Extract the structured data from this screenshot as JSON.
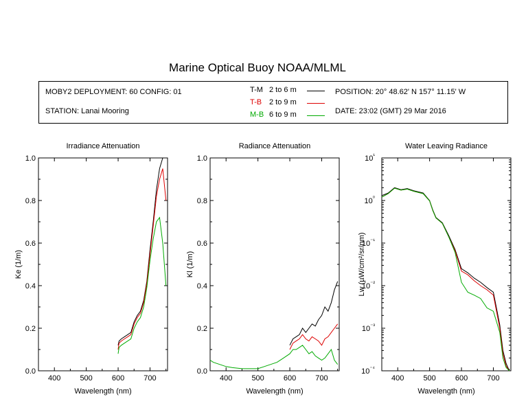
{
  "title": "Marine Optical Buoy NOAA/MLML",
  "info": {
    "deployment": "MOBY2 DEPLOYMENT: 60 CONFIG: 01",
    "station": "STATION: Lanai Mooring",
    "position": "POSITION: 20° 48.62' N   157° 11.15' W",
    "date": "DATE: 23:02 (GMT) 29 Mar 2016",
    "legend": [
      {
        "key": "T-M",
        "range": "2 to 6",
        "unit": "m",
        "color": "#000000",
        "key_color": "#000000"
      },
      {
        "key": "T-B",
        "range": "2 to 9",
        "unit": "m",
        "color": "#dd0000",
        "key_color": "#dd0000"
      },
      {
        "key": "M-B",
        "range": "6 to 9",
        "unit": "m",
        "color": "#00aa00",
        "key_color": "#00aa00"
      }
    ]
  },
  "chart_data": [
    {
      "type": "line",
      "title": "Irradiance Attenuation",
      "xlabel": "Wavelength (nm)",
      "ylabel": "Ke  (1/m)",
      "xlim": [
        350,
        755
      ],
      "ylim": [
        0,
        1.0
      ],
      "xticks": [
        400,
        500,
        600,
        700
      ],
      "yticks": [
        0.0,
        0.2,
        0.4,
        0.6,
        0.8,
        1.0
      ],
      "ytick_labels": [
        "0.0",
        "0.2",
        "0.4",
        "0.6",
        "0.8",
        "1.0"
      ],
      "series": [
        {
          "name": "T-M",
          "x": [
            600,
            603,
            610,
            620,
            630,
            640,
            650,
            660,
            665,
            670,
            680,
            690,
            700,
            710,
            720,
            730,
            740,
            750
          ],
          "y": [
            0.12,
            0.14,
            0.15,
            0.16,
            0.17,
            0.18,
            0.23,
            0.26,
            0.27,
            0.28,
            0.33,
            0.42,
            0.57,
            0.7,
            0.85,
            0.95,
            1.0,
            1.0
          ]
        },
        {
          "name": "T-B",
          "x": [
            600,
            603,
            610,
            620,
            630,
            640,
            650,
            660,
            665,
            670,
            680,
            690,
            700,
            710,
            720,
            730,
            740,
            750
          ],
          "y": [
            0.1,
            0.13,
            0.14,
            0.15,
            0.16,
            0.17,
            0.22,
            0.25,
            0.26,
            0.27,
            0.32,
            0.41,
            0.55,
            0.68,
            0.82,
            0.9,
            0.95,
            0.8
          ]
        },
        {
          "name": "M-B",
          "x": [
            600,
            603,
            610,
            620,
            630,
            640,
            650,
            660,
            665,
            670,
            680,
            690,
            700,
            710,
            720,
            730,
            740,
            750
          ],
          "y": [
            0.08,
            0.11,
            0.12,
            0.13,
            0.14,
            0.15,
            0.2,
            0.23,
            0.24,
            0.25,
            0.3,
            0.39,
            0.52,
            0.62,
            0.7,
            0.72,
            0.6,
            0.4
          ]
        }
      ]
    },
    {
      "type": "line",
      "title": "Radiance Attenuation",
      "xlabel": "Wavelength (nm)",
      "ylabel": "Kl  (1/m)",
      "xlim": [
        350,
        755
      ],
      "ylim": [
        0,
        1.0
      ],
      "xticks": [
        400,
        500,
        600,
        700
      ],
      "yticks": [
        0.0,
        0.2,
        0.4,
        0.6,
        0.8,
        1.0
      ],
      "ytick_labels": [
        "0.0",
        "0.2",
        "0.4",
        "0.6",
        "0.8",
        "1.0"
      ],
      "series": [
        {
          "name": "T-M",
          "x": [
            600,
            610,
            620,
            630,
            640,
            650,
            660,
            670,
            680,
            690,
            700,
            710,
            720,
            730,
            740,
            750
          ],
          "y": [
            0.12,
            0.15,
            0.16,
            0.17,
            0.2,
            0.18,
            0.2,
            0.22,
            0.21,
            0.24,
            0.26,
            0.3,
            0.28,
            0.32,
            0.38,
            0.42
          ]
        },
        {
          "name": "T-B",
          "x": [
            600,
            610,
            620,
            630,
            640,
            650,
            660,
            670,
            680,
            690,
            700,
            710,
            720,
            730,
            740,
            750
          ],
          "y": [
            0.1,
            0.13,
            0.14,
            0.15,
            0.17,
            0.15,
            0.14,
            0.16,
            0.15,
            0.14,
            0.12,
            0.15,
            0.16,
            0.18,
            0.2,
            0.22
          ]
        },
        {
          "name": "M-B",
          "x": [
            350,
            360,
            380,
            400,
            420,
            450,
            480,
            500,
            520,
            540,
            560,
            580,
            600,
            610,
            620,
            630,
            640,
            650,
            660,
            670,
            680,
            690,
            700,
            710,
            720,
            730,
            740,
            750
          ],
          "y": [
            0.05,
            0.04,
            0.03,
            0.02,
            0.015,
            0.01,
            0.01,
            0.01,
            0.02,
            0.03,
            0.04,
            0.06,
            0.08,
            0.1,
            0.1,
            0.11,
            0.12,
            0.1,
            0.08,
            0.09,
            0.07,
            0.06,
            0.05,
            0.06,
            0.08,
            0.1,
            0.05,
            0.03
          ]
        }
      ]
    },
    {
      "type": "line",
      "title": "Water Leaving Radiance",
      "xlabel": "Wavelength (nm)",
      "ylabel": "Lw  (µW/cm²/sr/nm)",
      "xlim": [
        350,
        755
      ],
      "yscale": "log",
      "ylim": [
        0.0001,
        10
      ],
      "xticks": [
        400,
        500,
        600,
        700
      ],
      "yticks": [
        0.0001,
        0.001,
        0.01,
        0.1,
        1,
        10
      ],
      "ytick_labels": [
        "10⁻⁴",
        "10⁻³",
        "10⁻²",
        "10⁻¹",
        "10⁰",
        "10¹"
      ],
      "series": [
        {
          "name": "T-M",
          "x": [
            350,
            370,
            390,
            410,
            430,
            450,
            480,
            500,
            510,
            520,
            540,
            560,
            580,
            600,
            620,
            640,
            660,
            680,
            700,
            720,
            730,
            740,
            750
          ],
          "y": [
            1.3,
            1.5,
            2.0,
            1.8,
            1.9,
            1.7,
            1.5,
            1.0,
            0.6,
            0.4,
            0.3,
            0.15,
            0.07,
            0.025,
            0.02,
            0.015,
            0.012,
            0.009,
            0.007,
            0.0012,
            0.0003,
            0.00015,
            0.0001
          ]
        },
        {
          "name": "T-B",
          "x": [
            350,
            370,
            390,
            410,
            430,
            450,
            480,
            500,
            510,
            520,
            540,
            560,
            580,
            600,
            620,
            640,
            660,
            680,
            700,
            720,
            730,
            740,
            750
          ],
          "y": [
            1.2,
            1.45,
            1.95,
            1.75,
            1.85,
            1.65,
            1.45,
            0.98,
            0.58,
            0.39,
            0.29,
            0.14,
            0.065,
            0.022,
            0.018,
            0.013,
            0.01,
            0.008,
            0.006,
            0.001,
            0.00025,
            0.00013,
            0.0001
          ]
        },
        {
          "name": "M-B",
          "x": [
            350,
            370,
            390,
            410,
            430,
            450,
            480,
            500,
            510,
            520,
            540,
            560,
            580,
            600,
            620,
            640,
            660,
            680,
            700,
            720,
            730,
            740,
            750
          ],
          "y": [
            1.2,
            1.45,
            1.95,
            1.75,
            1.85,
            1.65,
            1.45,
            0.98,
            0.58,
            0.39,
            0.29,
            0.14,
            0.06,
            0.012,
            0.007,
            0.006,
            0.005,
            0.003,
            0.0025,
            0.0008,
            0.0002,
            0.00012,
            0.0001
          ]
        }
      ]
    }
  ]
}
